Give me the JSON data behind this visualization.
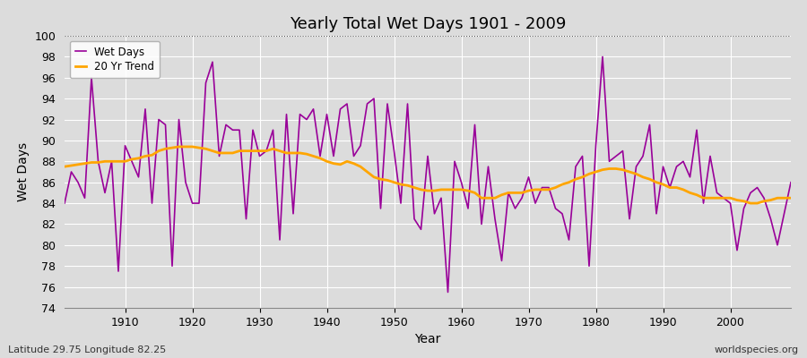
{
  "title": "Yearly Total Wet Days 1901 - 2009",
  "xlabel": "Year",
  "ylabel": "Wet Days",
  "subtitle_left": "Latitude 29.75 Longitude 82.25",
  "subtitle_right": "worldspecies.org",
  "ylim": [
    74,
    100
  ],
  "xlim": [
    1901,
    2009
  ],
  "yticks": [
    74,
    76,
    78,
    80,
    82,
    84,
    86,
    88,
    90,
    92,
    94,
    96,
    98,
    100
  ],
  "xticks": [
    1910,
    1920,
    1930,
    1940,
    1950,
    1960,
    1970,
    1980,
    1990,
    2000
  ],
  "wet_days_color": "#990099",
  "trend_color": "#FFA500",
  "background_color": "#DCDCDC",
  "plot_bg_color": "#DCDCDC",
  "grid_color": "#FFFFFF",
  "wet_days": {
    "1901": 84.0,
    "1902": 87.0,
    "1903": 86.0,
    "1904": 84.5,
    "1905": 96.0,
    "1906": 88.0,
    "1907": 85.0,
    "1908": 88.0,
    "1909": 77.5,
    "1910": 89.5,
    "1911": 88.0,
    "1912": 86.5,
    "1913": 93.0,
    "1914": 84.0,
    "1915": 92.0,
    "1916": 91.5,
    "1917": 78.0,
    "1918": 92.0,
    "1919": 86.0,
    "1920": 84.0,
    "1921": 84.0,
    "1922": 95.5,
    "1923": 97.5,
    "1924": 88.5,
    "1925": 91.5,
    "1926": 91.0,
    "1927": 91.0,
    "1928": 82.5,
    "1929": 91.0,
    "1930": 88.5,
    "1931": 89.0,
    "1932": 91.0,
    "1933": 80.5,
    "1934": 92.5,
    "1935": 83.0,
    "1936": 92.5,
    "1937": 92.0,
    "1938": 93.0,
    "1939": 88.5,
    "1940": 92.5,
    "1941": 88.5,
    "1942": 93.0,
    "1943": 93.5,
    "1944": 88.5,
    "1945": 89.5,
    "1946": 93.5,
    "1947": 94.0,
    "1948": 83.5,
    "1949": 93.5,
    "1950": 89.0,
    "1951": 84.0,
    "1952": 93.5,
    "1953": 82.5,
    "1954": 81.5,
    "1955": 88.5,
    "1956": 83.0,
    "1957": 84.5,
    "1958": 75.5,
    "1959": 88.0,
    "1960": 86.0,
    "1961": 83.5,
    "1962": 91.5,
    "1963": 82.0,
    "1964": 87.5,
    "1965": 82.5,
    "1966": 78.5,
    "1967": 85.0,
    "1968": 83.5,
    "1969": 84.5,
    "1970": 86.5,
    "1971": 84.0,
    "1972": 85.5,
    "1973": 85.5,
    "1974": 83.5,
    "1975": 83.0,
    "1976": 80.5,
    "1977": 87.5,
    "1978": 88.5,
    "1979": 78.0,
    "1980": 89.5,
    "1981": 98.0,
    "1982": 88.0,
    "1983": 88.5,
    "1984": 89.0,
    "1985": 82.5,
    "1986": 87.5,
    "1987": 88.5,
    "1988": 91.5,
    "1989": 83.0,
    "1990": 87.5,
    "1991": 85.5,
    "1992": 87.5,
    "1993": 88.0,
    "1994": 86.5,
    "1995": 91.0,
    "1996": 84.0,
    "1997": 88.5,
    "1998": 85.0,
    "1999": 84.5,
    "2000": 84.0,
    "2001": 79.5,
    "2002": 83.5,
    "2003": 85.0,
    "2004": 85.5,
    "2005": 84.5,
    "2006": 82.5,
    "2007": 80.0,
    "2008": 83.0,
    "2009": 86.0
  },
  "trend_20yr": {
    "1901": 87.5,
    "1902": 87.6,
    "1903": 87.7,
    "1904": 87.8,
    "1905": 87.9,
    "1906": 87.9,
    "1907": 88.0,
    "1908": 88.0,
    "1909": 88.0,
    "1910": 88.0,
    "1911": 88.2,
    "1912": 88.3,
    "1913": 88.5,
    "1914": 88.6,
    "1915": 89.0,
    "1916": 89.2,
    "1917": 89.3,
    "1918": 89.4,
    "1919": 89.4,
    "1920": 89.4,
    "1921": 89.3,
    "1922": 89.2,
    "1923": 89.0,
    "1924": 88.8,
    "1925": 88.8,
    "1926": 88.8,
    "1927": 89.0,
    "1928": 89.0,
    "1929": 89.0,
    "1930": 89.0,
    "1931": 89.0,
    "1932": 89.2,
    "1933": 89.0,
    "1934": 88.8,
    "1935": 88.8,
    "1936": 88.8,
    "1937": 88.7,
    "1938": 88.5,
    "1939": 88.3,
    "1940": 88.0,
    "1941": 87.8,
    "1942": 87.7,
    "1943": 88.0,
    "1944": 87.8,
    "1945": 87.5,
    "1946": 87.0,
    "1947": 86.5,
    "1948": 86.3,
    "1949": 86.2,
    "1950": 86.0,
    "1951": 85.8,
    "1952": 85.7,
    "1953": 85.5,
    "1954": 85.3,
    "1955": 85.2,
    "1956": 85.2,
    "1957": 85.3,
    "1958": 85.3,
    "1959": 85.3,
    "1960": 85.3,
    "1961": 85.2,
    "1962": 85.0,
    "1963": 84.5,
    "1964": 84.5,
    "1965": 84.5,
    "1966": 84.8,
    "1967": 85.0,
    "1968": 85.0,
    "1969": 85.0,
    "1970": 85.2,
    "1971": 85.3,
    "1972": 85.3,
    "1973": 85.3,
    "1974": 85.5,
    "1975": 85.8,
    "1976": 86.0,
    "1977": 86.3,
    "1978": 86.5,
    "1979": 86.8,
    "1980": 87.0,
    "1981": 87.2,
    "1982": 87.3,
    "1983": 87.3,
    "1984": 87.2,
    "1985": 87.0,
    "1986": 86.8,
    "1987": 86.5,
    "1988": 86.3,
    "1989": 86.0,
    "1990": 85.8,
    "1991": 85.5,
    "1992": 85.5,
    "1993": 85.3,
    "1994": 85.0,
    "1995": 84.8,
    "1996": 84.5,
    "1997": 84.5,
    "1998": 84.5,
    "1999": 84.5,
    "2000": 84.5,
    "2001": 84.3,
    "2002": 84.2,
    "2003": 84.0,
    "2004": 84.0,
    "2005": 84.2,
    "2006": 84.3,
    "2007": 84.5,
    "2008": 84.5,
    "2009": 84.5
  }
}
